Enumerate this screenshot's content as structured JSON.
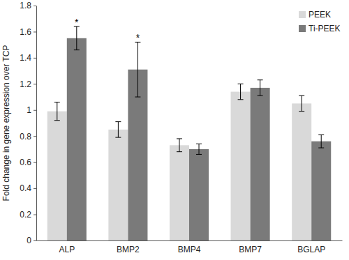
{
  "chart_data": {
    "type": "bar",
    "y_label": "Fold change in gene expression over TCP",
    "categories": [
      "ALP",
      "BMP2",
      "BMP4",
      "BMP7",
      "BGLAP"
    ],
    "series": [
      {
        "name": "PEEK",
        "color": "#d9d9d9",
        "values": [
          0.99,
          0.85,
          0.73,
          1.14,
          1.05
        ],
        "errors": [
          0.07,
          0.06,
          0.05,
          0.06,
          0.06
        ]
      },
      {
        "name": "Ti-PEEK",
        "color": "#7a7a7a",
        "values": [
          1.55,
          1.31,
          0.7,
          1.17,
          0.76
        ],
        "errors": [
          0.09,
          0.21,
          0.04,
          0.06,
          0.05
        ],
        "annotations": [
          "*",
          "*",
          null,
          null,
          null
        ]
      }
    ],
    "ylim": [
      0,
      1.8
    ],
    "yticks": [
      0,
      0.2,
      0.4,
      0.6,
      0.8,
      1,
      1.2,
      1.4,
      1.6,
      1.8
    ],
    "grid": false,
    "legend": "upper right"
  }
}
